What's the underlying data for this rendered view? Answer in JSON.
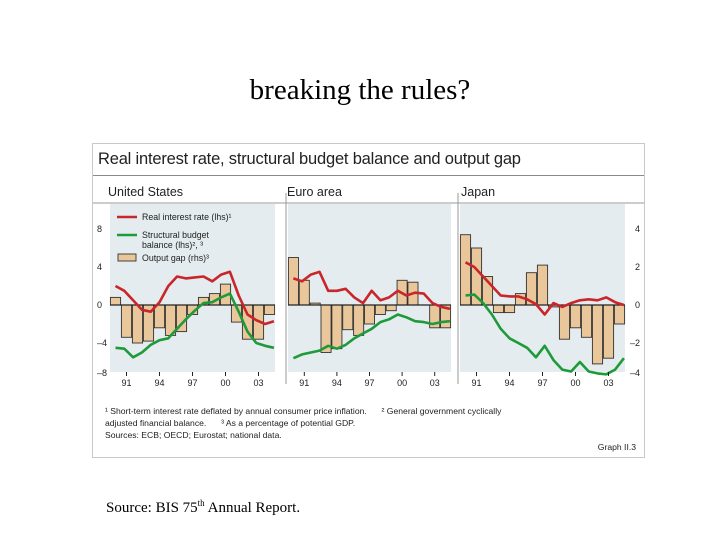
{
  "slide": {
    "title": "breaking the rules?",
    "source_prefix": "Source: BIS 75",
    "source_sup": "th",
    "source_suffix": " Annual Report."
  },
  "figure": {
    "title": "Real interest rate, structural budget balance and output gap",
    "footnote_1": "¹ Short-term interest rate deflated by annual consumer price inflation.",
    "footnote_2": "² General government cyclically",
    "footnote_2b": "adjusted financial balance.",
    "footnote_3": "³ As a percentage of potential GDP.",
    "sources": "Sources: ECB; OECD; Eurostat; national data.",
    "graph_label": "Graph II.3"
  },
  "colors": {
    "real_rate": "#c8262b",
    "budget": "#1f9a3a",
    "output_gap_fill": "#e9c79a",
    "output_gap_stroke": "#333333",
    "panel_bg": "#e4ecef"
  },
  "chart_data": [
    {
      "type": "bar",
      "title": "United States",
      "x_ticks": [
        "91",
        "94",
        "97",
        "00",
        "03"
      ],
      "lhs_ticks": [
        "8",
        "4",
        "0",
        "–4",
        "–8"
      ],
      "lhs_ylim": [
        -8,
        8
      ],
      "rhs_ylim": [
        -4,
        4
      ],
      "legend": {
        "real_rate": "Real interest rate (lhs)¹",
        "budget_line1": "Structural budget",
        "budget_line2": "balance (lhs)², ³",
        "output_gap": "Output gap (rhs)³"
      },
      "series": [
        {
          "name": "Output gap (rhs)³",
          "kind": "bar",
          "axis": "rhs",
          "x": [
            1990,
            1991,
            1992,
            1993,
            1994,
            1995,
            1996,
            1997,
            1998,
            1999,
            2000,
            2001,
            2002,
            2003,
            2004
          ],
          "values": [
            0.4,
            -1.7,
            -2.0,
            -1.9,
            -1.2,
            -1.6,
            -1.4,
            -0.5,
            0.4,
            0.6,
            1.1,
            -0.9,
            -1.8,
            -1.8,
            -0.5
          ]
        },
        {
          "name": "Real interest rate (lhs)¹",
          "kind": "line",
          "axis": "lhs",
          "x": [
            1990.0,
            1990.8,
            1991.6,
            1992.4,
            1993.2,
            1994.0,
            1994.8,
            1995.6,
            1996.4,
            1997.2,
            1998.0,
            1998.8,
            1999.6,
            2000.4,
            2001.2,
            2002.0,
            2002.8,
            2003.6,
            2004.4
          ],
          "values": [
            2.0,
            1.5,
            0.5,
            -0.5,
            -0.7,
            0.3,
            2.0,
            3.0,
            2.8,
            2.9,
            3.0,
            2.5,
            3.2,
            3.5,
            1.0,
            -1.0,
            -1.6,
            -2.0,
            -1.7
          ]
        },
        {
          "name": "Structural budget balance (lhs)², ³",
          "kind": "line",
          "axis": "lhs",
          "x": [
            1990.0,
            1990.8,
            1991.6,
            1992.4,
            1993.2,
            1994.0,
            1994.8,
            1995.6,
            1996.4,
            1997.2,
            1998.0,
            1998.8,
            1999.6,
            2000.4,
            2001.2,
            2002.0,
            2002.8,
            2003.6,
            2004.4
          ],
          "values": [
            -4.5,
            -4.6,
            -5.5,
            -5.0,
            -4.2,
            -3.7,
            -3.5,
            -2.5,
            -1.5,
            -0.6,
            0.2,
            0.3,
            0.8,
            1.2,
            -0.7,
            -2.8,
            -4.0,
            -4.3,
            -4.5
          ]
        }
      ]
    },
    {
      "type": "bar",
      "title": "Euro area",
      "x_ticks": [
        "91",
        "94",
        "97",
        "00",
        "03"
      ],
      "lhs_ylim": [
        -8,
        8
      ],
      "rhs_ylim": [
        -4,
        4
      ],
      "series": [
        {
          "name": "Output gap (rhs)³",
          "kind": "bar",
          "axis": "rhs",
          "x": [
            1990,
            1991,
            1992,
            1993,
            1994,
            1995,
            1996,
            1997,
            1998,
            1999,
            2000,
            2001,
            2002,
            2003,
            2004
          ],
          "values": [
            2.5,
            1.3,
            0.1,
            -2.5,
            -2.3,
            -1.3,
            -1.6,
            -1.0,
            -0.5,
            -0.3,
            1.3,
            1.2,
            0.0,
            -1.2,
            -1.2
          ]
        },
        {
          "name": "Real interest rate (lhs)¹",
          "kind": "line",
          "axis": "lhs",
          "x": [
            1990.0,
            1990.8,
            1991.6,
            1992.4,
            1993.2,
            1994.0,
            1994.8,
            1995.6,
            1996.4,
            1997.2,
            1998.0,
            1998.8,
            1999.6,
            2000.4,
            2001.2,
            2002.0,
            2002.8,
            2003.6,
            2004.4
          ],
          "values": [
            2.8,
            2.5,
            3.2,
            3.5,
            1.5,
            1.5,
            1.7,
            0.8,
            0.2,
            1.5,
            0.5,
            0.8,
            1.5,
            1.0,
            1.3,
            1.2,
            0.2,
            -0.2,
            -0.4
          ]
        },
        {
          "name": "Structural budget balance (lhs)², ³",
          "kind": "line",
          "axis": "lhs",
          "x": [
            1990.0,
            1990.8,
            1991.6,
            1992.4,
            1993.2,
            1994.0,
            1994.8,
            1995.6,
            1996.4,
            1997.2,
            1998.0,
            1998.8,
            1999.6,
            2000.4,
            2001.2,
            2002.0,
            2002.8,
            2003.6,
            2004.4
          ],
          "values": [
            -5.6,
            -5.2,
            -5.0,
            -4.8,
            -4.3,
            -4.6,
            -4.2,
            -3.5,
            -3.0,
            -2.5,
            -1.8,
            -1.5,
            -1.0,
            -1.3,
            -1.7,
            -1.8,
            -2.0,
            -1.8,
            -1.7
          ]
        }
      ]
    },
    {
      "type": "bar",
      "title": "Japan",
      "x_ticks": [
        "91",
        "94",
        "97",
        "00",
        "03"
      ],
      "rhs_ticks": [
        "4",
        "2",
        "0",
        "–2",
        "–4"
      ],
      "lhs_ylim": [
        -8,
        8
      ],
      "rhs_ylim": [
        -4,
        4
      ],
      "series": [
        {
          "name": "Output gap (rhs)³",
          "kind": "bar",
          "axis": "rhs",
          "x": [
            1990,
            1991,
            1992,
            1993,
            1994,
            1995,
            1996,
            1997,
            1998,
            1999,
            2000,
            2001,
            2002,
            2003,
            2004
          ],
          "values": [
            3.7,
            3.0,
            1.5,
            -0.4,
            -0.4,
            0.6,
            1.7,
            2.1,
            -0.1,
            -1.8,
            -1.2,
            -1.7,
            -3.1,
            -2.8,
            -1.0
          ]
        },
        {
          "name": "Real interest rate (lhs)¹",
          "kind": "line",
          "axis": "lhs",
          "x": [
            1990.0,
            1990.8,
            1991.6,
            1992.4,
            1993.2,
            1994.0,
            1994.8,
            1995.6,
            1996.4,
            1997.2,
            1998.0,
            1998.8,
            1999.6,
            2000.4,
            2001.2,
            2002.0,
            2002.8,
            2003.6,
            2004.4
          ],
          "values": [
            4.5,
            4.0,
            3.0,
            2.0,
            1.0,
            0.9,
            0.9,
            0.6,
            0.1,
            -1.0,
            0.2,
            -0.2,
            0.2,
            0.5,
            0.6,
            0.5,
            0.8,
            0.3,
            0.0
          ]
        },
        {
          "name": "Structural budget balance (lhs)², ³",
          "kind": "line",
          "axis": "lhs",
          "x": [
            1990.0,
            1990.8,
            1991.6,
            1992.4,
            1993.2,
            1994.0,
            1994.8,
            1995.6,
            1996.4,
            1997.2,
            1998.0,
            1998.8,
            1999.6,
            2000.4,
            2001.2,
            2002.0,
            2002.8,
            2003.6,
            2004.4
          ],
          "values": [
            1.0,
            1.1,
            0.2,
            -1.0,
            -2.5,
            -3.5,
            -4.0,
            -4.5,
            -5.5,
            -4.3,
            -5.8,
            -6.8,
            -7.0,
            -6.0,
            -7.0,
            -7.2,
            -7.3,
            -6.8,
            -5.6
          ]
        }
      ]
    }
  ]
}
